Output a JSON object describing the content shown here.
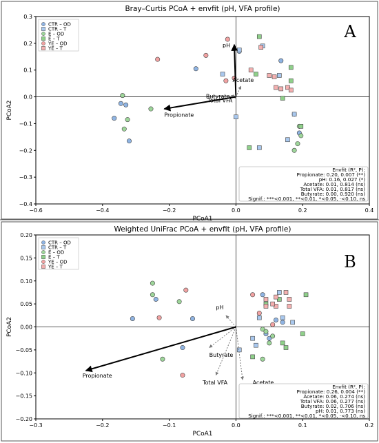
{
  "chart_data": [
    {
      "panel": "A",
      "type": "scatter",
      "title": "Bray–Curtis PCoA + envfit (pH, VFA profile)",
      "xlabel": "PCoA1",
      "ylabel": "PCoA2",
      "xlim": [
        -0.6,
        0.4
      ],
      "ylim": [
        -0.4,
        0.3
      ],
      "xticks": [
        "−0.6",
        "−0.4",
        "−0.2",
        "0.0",
        "0.2",
        "0.4"
      ],
      "xtick_values": [
        -0.6,
        -0.4,
        -0.2,
        0.0,
        0.2,
        0.4
      ],
      "yticks": [
        "−0.4",
        "−0.3",
        "−0.2",
        "−0.1",
        "0.0",
        "0.1",
        "0.2",
        "0.3"
      ],
      "ytick_values": [
        -0.4,
        -0.3,
        -0.2,
        -0.1,
        0.0,
        0.1,
        0.2,
        0.3
      ],
      "legend": "top-left",
      "series": [
        {
          "name": "CTR – OD",
          "marker": "circle",
          "color": "#8fb4e3",
          "points": [
            [
              -0.365,
              -0.08
            ],
            [
              -0.345,
              -0.025
            ],
            [
              -0.33,
              -0.03
            ],
            [
              -0.32,
              -0.165
            ],
            [
              -0.12,
              0.105
            ],
            [
              0.135,
              0.135
            ],
            [
              0.175,
              -0.065
            ],
            [
              0.19,
              -0.135
            ],
            [
              0.01,
              0.17
            ]
          ]
        },
        {
          "name": "CTR – T",
          "marker": "square",
          "color": "#a9c8ee",
          "points": [
            [
              -0.04,
              0.085
            ],
            [
              0.0,
              -0.075
            ],
            [
              0.01,
              0.175
            ],
            [
              0.13,
              0.08
            ],
            [
              0.175,
              -0.065
            ],
            [
              0.07,
              -0.19
            ],
            [
              0.155,
              -0.16
            ],
            [
              0.08,
              0.19
            ]
          ]
        },
        {
          "name": "E – OD",
          "marker": "circle",
          "color": "#9ed69a",
          "points": [
            [
              -0.34,
              0.005
            ],
            [
              -0.335,
              -0.12
            ],
            [
              -0.255,
              -0.045
            ],
            [
              -0.325,
              -0.085
            ],
            [
              0.19,
              -0.11
            ],
            [
              0.195,
              -0.145
            ],
            [
              0.175,
              -0.2
            ],
            [
              0.185,
              -0.175
            ]
          ]
        },
        {
          "name": "E – T",
          "marker": "square",
          "color": "#8fd08a",
          "points": [
            [
              0.07,
              0.225
            ],
            [
              0.165,
              0.06
            ],
            [
              0.165,
              0.11
            ],
            [
              0.14,
              -0.005
            ],
            [
              0.04,
              -0.19
            ],
            [
              0.195,
              -0.11
            ],
            [
              0.06,
              0.085
            ]
          ]
        },
        {
          "name": "YE – OD",
          "marker": "circle",
          "color": "#f2a2a2",
          "points": [
            [
              -0.235,
              0.14
            ],
            [
              -0.09,
              0.155
            ],
            [
              -0.025,
              0.215
            ],
            [
              -0.03,
              0.06
            ],
            [
              -0.005,
              0.07
            ]
          ]
        },
        {
          "name": "YE – T",
          "marker": "square",
          "color": "#f4b0b0",
          "points": [
            [
              0.045,
              0.1
            ],
            [
              0.1,
              0.08
            ],
            [
              0.115,
              0.075
            ],
            [
              0.12,
              0.035
            ],
            [
              0.135,
              0.03
            ],
            [
              0.155,
              0.035
            ],
            [
              0.165,
              0.025
            ],
            [
              0.075,
              0.185
            ]
          ]
        }
      ],
      "arrows": [
        {
          "label": "pH",
          "x": -0.005,
          "y": 0.195,
          "style": "solid-black",
          "label_x": -0.04,
          "label_y": 0.185
        },
        {
          "label": "Acetate",
          "x": 0.015,
          "y": 0.04,
          "style": "dotted-gray",
          "label_x": -0.01,
          "label_y": 0.055
        },
        {
          "label": "Butyrate",
          "x": -0.015,
          "y": 0.005,
          "style": "dotted-gray",
          "label_x": -0.09,
          "label_y": -0.005
        },
        {
          "label": "Total VFA",
          "x": -0.01,
          "y": 0.0,
          "style": "dotted-gray",
          "label_x": -0.085,
          "label_y": -0.02
        },
        {
          "label": "Propionate",
          "x": -0.215,
          "y": -0.045,
          "style": "solid-black",
          "label_x": -0.215,
          "label_y": -0.075
        }
      ],
      "stats_box": {
        "title": "Envfit (R², P):",
        "lines": [
          "Propionate: 0.20, 0.007 (**)",
          "pH: 0.16, 0.027 (*)",
          "Acetate: 0.01, 0.814 (ns)",
          "Total VFA: 0.01, 0.817 (ns)",
          "Butyrate: 0.00, 0.920 (ns)",
          "Signif.: ***<0.001, **<0.01, *<0.05, ·<0.10, ns"
        ]
      }
    },
    {
      "panel": "B",
      "type": "scatter",
      "title": "Weighted UniFrac PCoA + envfit (pH, VFA profile)",
      "xlabel": "PCoA1",
      "ylabel": "PCoA2",
      "xlim": [
        -0.3,
        0.2
      ],
      "ylim": [
        -0.2,
        0.2
      ],
      "xticks": [
        "−0.3",
        "−0.2",
        "−0.1",
        "0.0",
        "0.1",
        "0.2"
      ],
      "xtick_values": [
        -0.3,
        -0.2,
        -0.1,
        0.0,
        0.1,
        0.2
      ],
      "yticks": [
        "−0.20",
        "−0.15",
        "−0.10",
        "−0.05",
        "0.00",
        "0.05",
        "0.10",
        "0.15",
        "0.20"
      ],
      "ytick_values": [
        -0.2,
        -0.15,
        -0.1,
        -0.05,
        0.0,
        0.05,
        0.1,
        0.15,
        0.2
      ],
      "legend": "top-left",
      "series": [
        {
          "name": "CTR – OD",
          "marker": "circle",
          "color": "#8fb4e3",
          "points": [
            [
              -0.155,
              0.018
            ],
            [
              -0.12,
              0.06
            ],
            [
              -0.065,
              0.018
            ],
            [
              0.04,
              0.07
            ],
            [
              0.06,
              0.015
            ],
            [
              0.07,
              0.01
            ],
            [
              0.045,
              -0.015
            ],
            [
              0.05,
              -0.025
            ],
            [
              -0.08,
              -0.045
            ]
          ]
        },
        {
          "name": "CTR – T",
          "marker": "square",
          "color": "#a9c8ee",
          "points": [
            [
              0.005,
              -0.05
            ],
            [
              0.025,
              -0.025
            ],
            [
              0.03,
              -0.04
            ],
            [
              0.07,
              0.02
            ],
            [
              0.085,
              0.01
            ],
            [
              0.035,
              0.02
            ],
            [
              0.065,
              0.075
            ]
          ]
        },
        {
          "name": "E – OD",
          "marker": "circle",
          "color": "#9ed69a",
          "points": [
            [
              -0.125,
              0.095
            ],
            [
              -0.125,
              0.07
            ],
            [
              -0.085,
              0.055
            ],
            [
              0.04,
              -0.005
            ],
            [
              0.045,
              -0.01
            ],
            [
              0.055,
              -0.02
            ],
            [
              0.05,
              -0.035
            ],
            [
              0.04,
              -0.07
            ],
            [
              -0.11,
              -0.07
            ]
          ]
        },
        {
          "name": "E – T",
          "marker": "square",
          "color": "#8fd08a",
          "points": [
            [
              0.065,
              0.06
            ],
            [
              0.105,
              0.07
            ],
            [
              0.045,
              0.05
            ],
            [
              0.07,
              -0.035
            ],
            [
              0.1,
              -0.015
            ],
            [
              0.075,
              -0.045
            ],
            [
              0.025,
              -0.065
            ]
          ]
        },
        {
          "name": "YE – OD",
          "marker": "circle",
          "color": "#f2a2a2",
          "points": [
            [
              -0.115,
              0.02
            ],
            [
              -0.08,
              -0.105
            ],
            [
              -0.075,
              0.08
            ],
            [
              0.025,
              0.07
            ],
            [
              0.035,
              0.03
            ],
            [
              0.055,
              0.005
            ]
          ]
        },
        {
          "name": "YE – T",
          "marker": "square",
          "color": "#f4b0b0",
          "points": [
            [
              0.045,
              0.06
            ],
            [
              0.06,
              0.065
            ],
            [
              0.075,
              0.075
            ],
            [
              0.08,
              0.06
            ],
            [
              0.06,
              0.045
            ],
            [
              0.055,
              0.05
            ],
            [
              0.045,
              0.045
            ],
            [
              0.08,
              0.045
            ]
          ]
        }
      ],
      "arrows": [
        {
          "label": "pH",
          "x": -0.015,
          "y": 0.025,
          "style": "dotted-gray",
          "label_x": -0.03,
          "label_y": 0.038
        },
        {
          "label": "Butyrate",
          "x": -0.04,
          "y": -0.045,
          "style": "dotted-gray",
          "label_x": -0.04,
          "label_y": -0.065
        },
        {
          "label": "Total VFA",
          "x": -0.03,
          "y": -0.105,
          "style": "dotted-gray",
          "label_x": -0.05,
          "label_y": -0.125
        },
        {
          "label": "Acetate",
          "x": 0.01,
          "y": -0.115,
          "style": "dotted-gray",
          "label_x": 0.025,
          "label_y": -0.125
        },
        {
          "label": "Propionate",
          "x": -0.225,
          "y": -0.095,
          "style": "solid-black",
          "label_x": -0.23,
          "label_y": -0.11
        }
      ],
      "stats_box": {
        "title": "Envfit (R², P):",
        "lines": [
          "Propionate: 0.26, 0.004 (**)",
          "Acetate: 0.06, 0.274 (ns)",
          "Total VFA: 0.06, 0.277 (ns)",
          "Butyrate: 0.02, 0.706 (ns)",
          "pH: 0.01, 0.773 (ns)",
          "Signif.: ***<0.001, **<0.01, *<0.05, ·<0.10, ns"
        ]
      }
    }
  ]
}
